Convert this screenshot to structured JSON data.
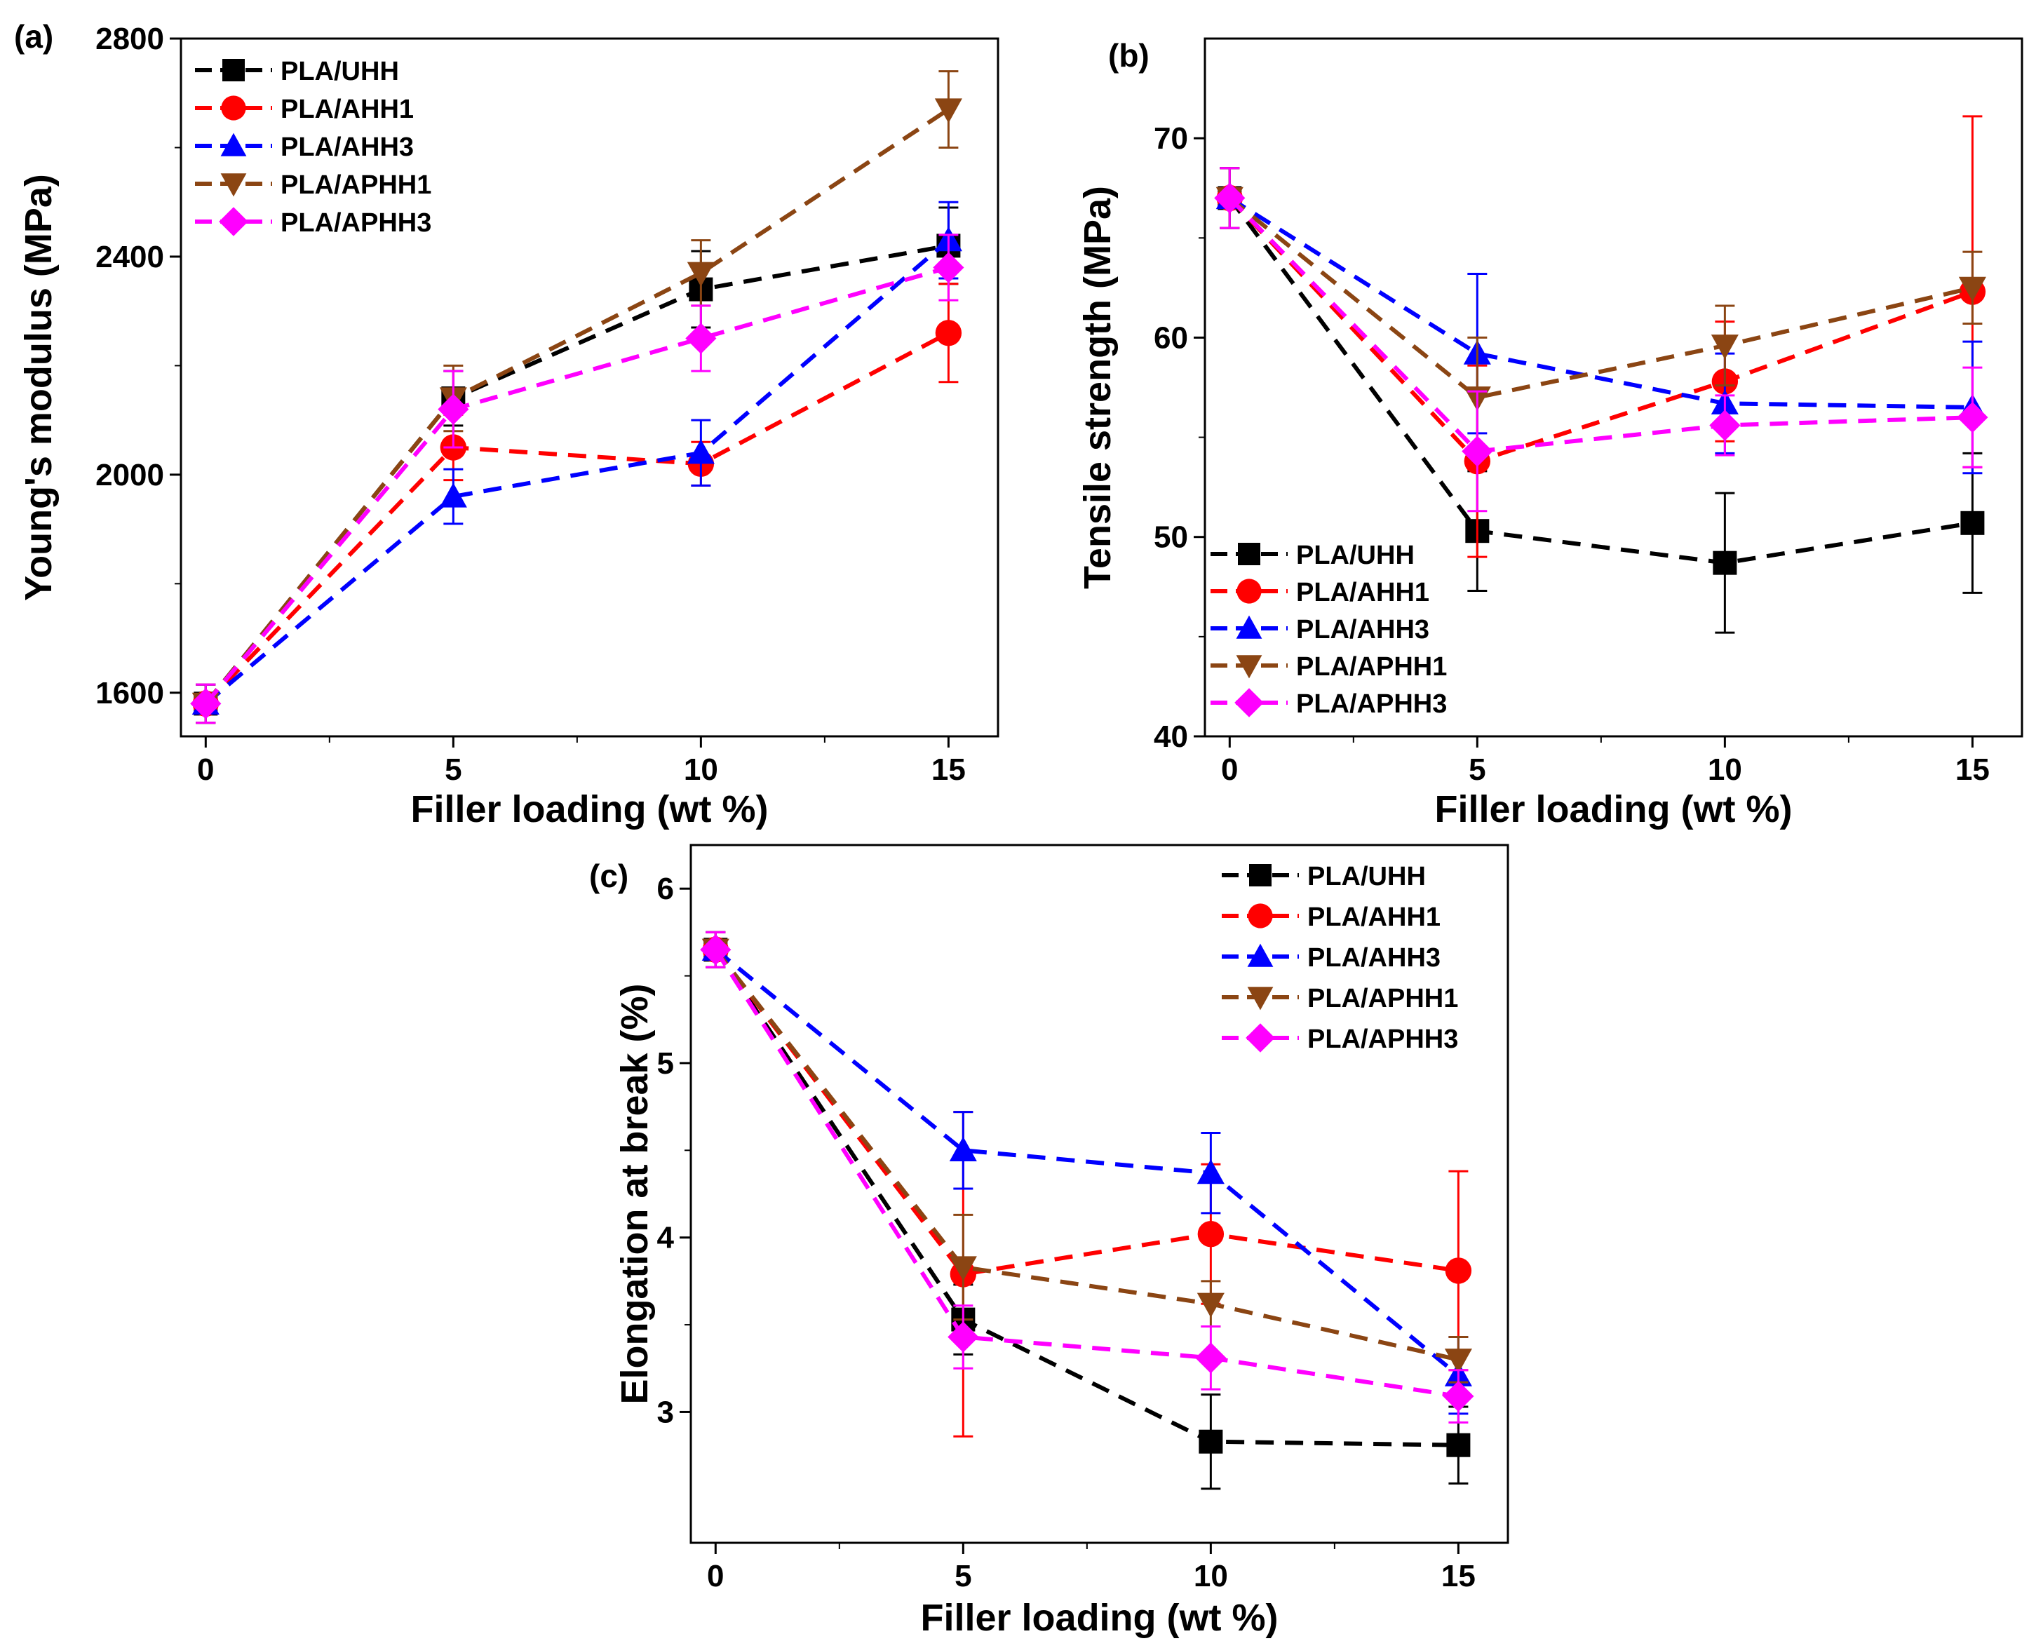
{
  "chart_data": [
    {
      "type": "line",
      "panel_label": "(a)",
      "title": "",
      "xlabel": "Filler loading (wt %)",
      "ylabel": "Young's modulus (MPa)",
      "x": [
        0,
        5,
        10,
        15
      ],
      "x_ticks": [
        0,
        5,
        10,
        15
      ],
      "xlim": [
        -0.5,
        16
      ],
      "ylim": [
        1520,
        2800
      ],
      "y_ticks": [
        1600,
        2000,
        2400,
        2800
      ],
      "legend_position": "top-left",
      "series": [
        {
          "name": "PLA/UHH",
          "color": "#000000",
          "marker": "square",
          "values": [
            1580,
            2140,
            2340,
            2420
          ],
          "errors": [
            35,
            50,
            70,
            70
          ]
        },
        {
          "name": "PLA/AHH1",
          "color": "#ff0000",
          "marker": "circle",
          "values": [
            1580,
            2050,
            2020,
            2260
          ],
          "errors": [
            35,
            60,
            40,
            90
          ]
        },
        {
          "name": "PLA/AHH3",
          "color": "#0000ff",
          "marker": "triangle-up",
          "values": [
            1580,
            1960,
            2040,
            2430
          ],
          "errors": [
            35,
            50,
            60,
            70
          ]
        },
        {
          "name": "PLA/APHH1",
          "color": "#8b4513",
          "marker": "triangle-down",
          "values": [
            1580,
            2140,
            2370,
            2670
          ],
          "errors": [
            35,
            60,
            60,
            70
          ]
        },
        {
          "name": "PLA/APHH3",
          "color": "#ff00ff",
          "marker": "diamond",
          "values": [
            1580,
            2120,
            2250,
            2380
          ],
          "errors": [
            35,
            70,
            60,
            60
          ]
        }
      ]
    },
    {
      "type": "line",
      "panel_label": "(b)",
      "title": "",
      "xlabel": "Filler loading (wt %)",
      "ylabel": "Tensile strength (MPa)",
      "x": [
        0,
        5,
        10,
        15
      ],
      "x_ticks": [
        0,
        5,
        10,
        15
      ],
      "xlim": [
        -0.5,
        16
      ],
      "ylim": [
        40,
        75
      ],
      "y_ticks": [
        40,
        50,
        60,
        70
      ],
      "legend_position": "bottom-left",
      "series": [
        {
          "name": "PLA/UHH",
          "color": "#000000",
          "marker": "square",
          "values": [
            67,
            50.3,
            48.7,
            50.7
          ],
          "errors": [
            1.5,
            3.0,
            3.5,
            3.5
          ]
        },
        {
          "name": "PLA/AHH1",
          "color": "#ff0000",
          "marker": "circle",
          "values": [
            67,
            53.8,
            57.8,
            62.3
          ],
          "errors": [
            1.5,
            4.8,
            3.0,
            8.8
          ]
        },
        {
          "name": "PLA/AHH3",
          "color": "#0000ff",
          "marker": "triangle-up",
          "values": [
            67,
            59.2,
            56.7,
            56.5
          ],
          "errors": [
            1.5,
            4.0,
            2.5,
            3.3
          ]
        },
        {
          "name": "PLA/APHH1",
          "color": "#8b4513",
          "marker": "triangle-down",
          "values": [
            67,
            57.0,
            59.6,
            62.5
          ],
          "errors": [
            1.5,
            3.0,
            2.0,
            1.8
          ]
        },
        {
          "name": "PLA/APHH3",
          "color": "#ff00ff",
          "marker": "diamond",
          "values": [
            67,
            54.3,
            55.6,
            56.0
          ],
          "errors": [
            1.5,
            3.0,
            1.5,
            2.5
          ]
        }
      ]
    },
    {
      "type": "line",
      "panel_label": "(c)",
      "title": "",
      "xlabel": "Filler loading (wt %)",
      "ylabel": "Elongation at break (%)",
      "x": [
        0,
        5,
        10,
        15
      ],
      "x_ticks": [
        0,
        5,
        10,
        15
      ],
      "xlim": [
        -0.5,
        16
      ],
      "ylim": [
        2.25,
        6.25
      ],
      "y_ticks": [
        3,
        4,
        5,
        6
      ],
      "legend_position": "top-right",
      "series": [
        {
          "name": "PLA/UHH",
          "color": "#000000",
          "marker": "square",
          "values": [
            5.65,
            3.53,
            2.83,
            2.81
          ],
          "errors": [
            0.1,
            0.2,
            0.27,
            0.22
          ]
        },
        {
          "name": "PLA/AHH1",
          "color": "#ff0000",
          "marker": "circle",
          "values": [
            5.65,
            3.79,
            4.02,
            3.81
          ],
          "errors": [
            0.1,
            0.93,
            0.4,
            0.57
          ]
        },
        {
          "name": "PLA/AHH3",
          "color": "#0000ff",
          "marker": "triangle-up",
          "values": [
            5.65,
            4.5,
            4.37,
            3.21
          ],
          "errors": [
            0.1,
            0.22,
            0.23,
            0.22
          ]
        },
        {
          "name": "PLA/APHH1",
          "color": "#8b4513",
          "marker": "triangle-down",
          "values": [
            5.65,
            3.83,
            3.62,
            3.3
          ],
          "errors": [
            0.1,
            0.3,
            0.13,
            0.13
          ]
        },
        {
          "name": "PLA/APHH3",
          "color": "#ff00ff",
          "marker": "diamond",
          "values": [
            5.65,
            3.43,
            3.31,
            3.09
          ],
          "errors": [
            0.1,
            0.18,
            0.18,
            0.15
          ]
        }
      ]
    }
  ]
}
